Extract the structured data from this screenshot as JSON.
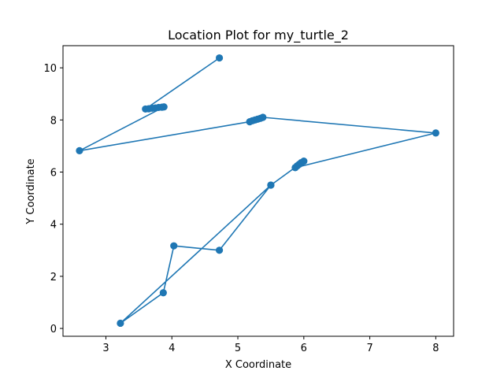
{
  "chart_data": {
    "type": "line",
    "title": "Location Plot for my_turtle_2",
    "xlabel": "X Coordinate",
    "ylabel": "Y Coordinate",
    "xlim": [
      2.35,
      8.27
    ],
    "ylim": [
      -0.3,
      10.85
    ],
    "xticks": [
      3,
      4,
      5,
      6,
      7,
      8
    ],
    "yticks": [
      0,
      2,
      4,
      6,
      8,
      10
    ],
    "grid": false,
    "color": "#1f77b4",
    "marker": "circle",
    "series": [
      {
        "x": [
          4.72,
          3.6,
          3.65,
          3.7,
          3.75,
          3.8,
          3.85,
          3.88,
          2.6,
          5.18,
          5.22,
          5.26,
          5.3,
          5.34,
          5.38,
          8.0,
          5.87,
          5.9,
          5.93,
          5.96,
          6.0,
          5.5,
          3.22,
          3.87,
          4.03,
          4.72,
          5.5
        ],
        "y": [
          10.38,
          8.42,
          8.43,
          8.45,
          8.46,
          8.48,
          8.49,
          8.5,
          6.82,
          7.93,
          7.97,
          8.0,
          8.03,
          8.06,
          8.1,
          7.5,
          6.17,
          6.24,
          6.3,
          6.36,
          6.42,
          5.5,
          0.2,
          1.37,
          3.17,
          3.0,
          5.5
        ]
      }
    ]
  }
}
